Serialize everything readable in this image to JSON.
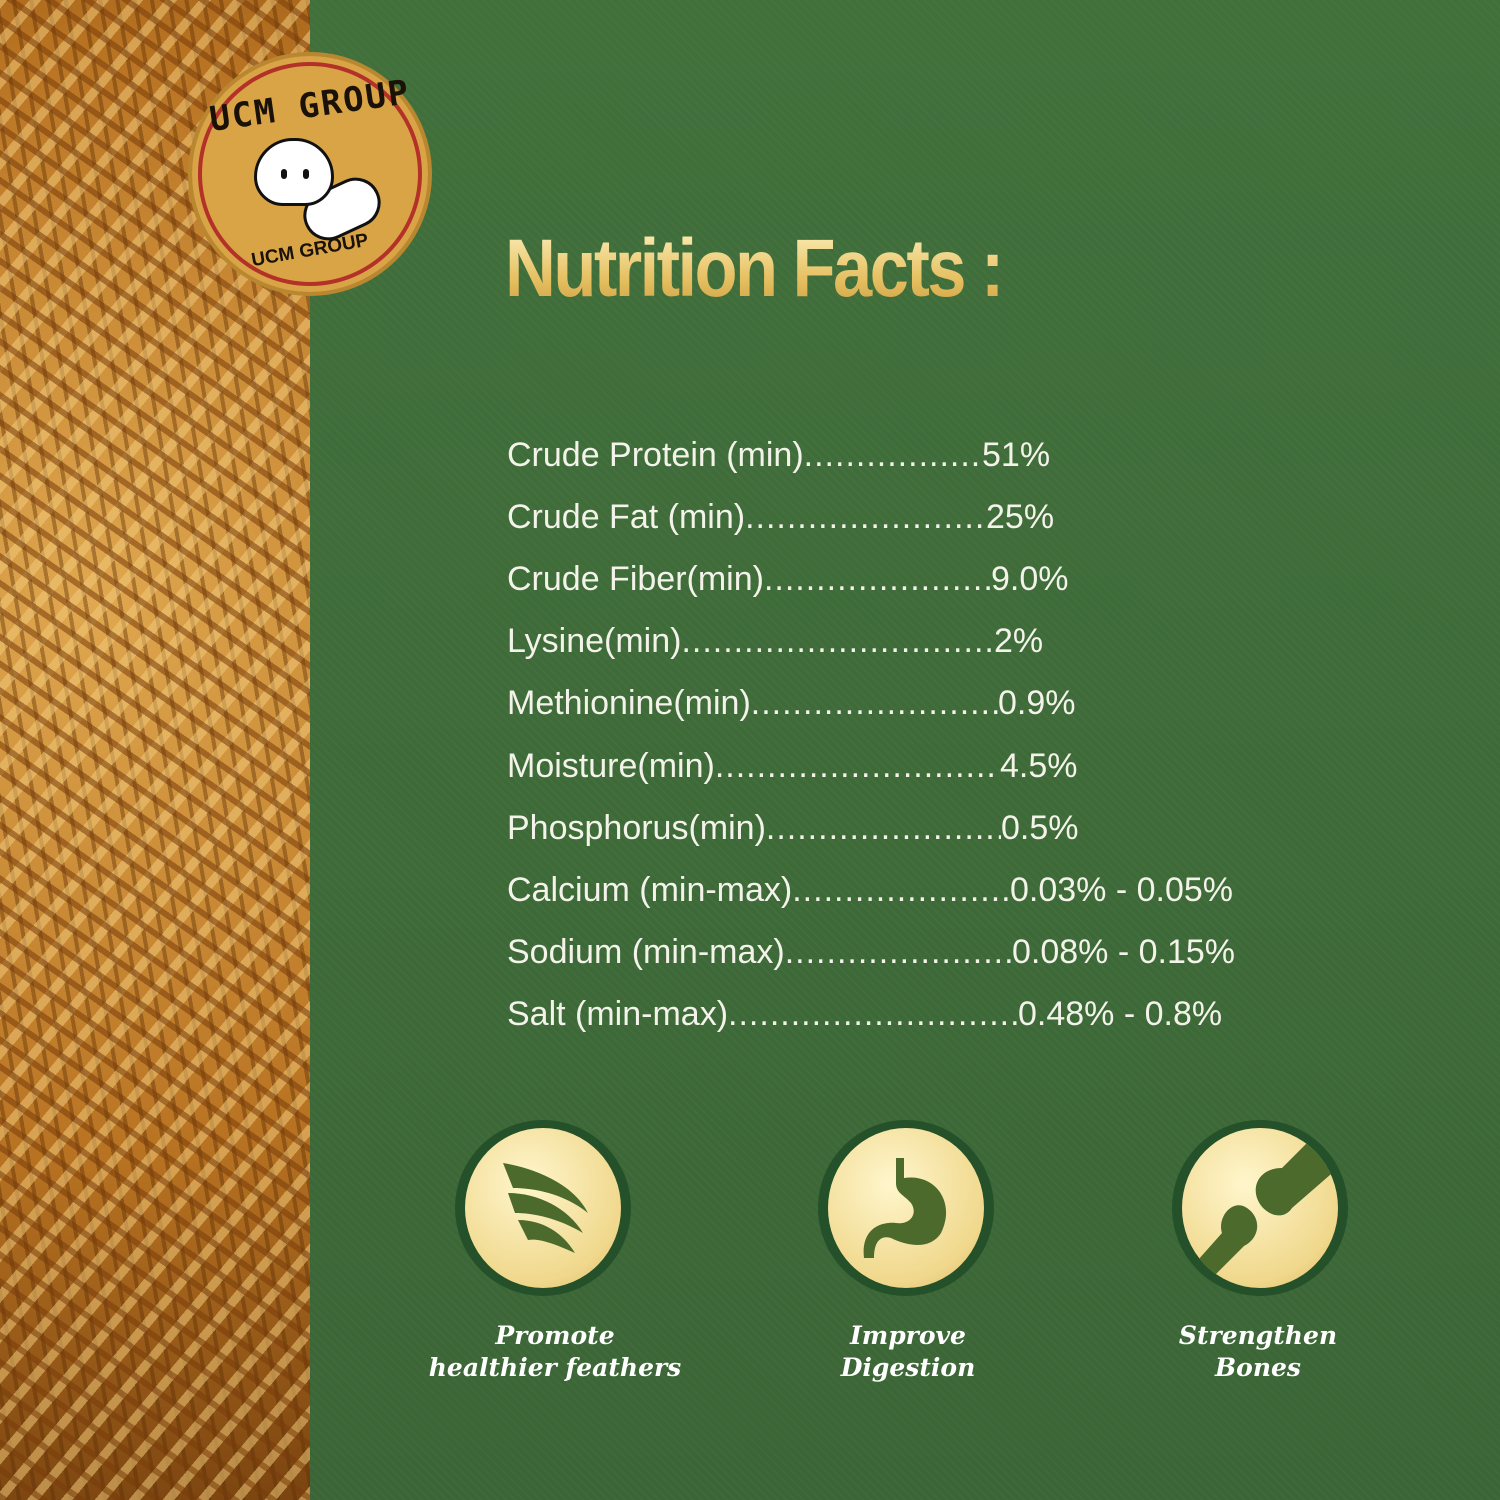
{
  "brand": {
    "logo_text_top": "UCM GROUP",
    "logo_text_bottom": "UCM GROUP"
  },
  "title": "Nutrition Facts :",
  "nutrients": [
    {
      "label": "Crude Protein (min)",
      "value": "51%"
    },
    {
      "label": "Crude Fat (min)",
      "value": "25%"
    },
    {
      "label": "Crude Fiber(min)",
      "value": "9.0%"
    },
    {
      "label": "Lysine(min)",
      "value": "2%"
    },
    {
      "label": "Methionine(min)",
      "value": "0.9%"
    },
    {
      "label": "Moisture(min)",
      "value": "4.5%"
    },
    {
      "label": "Phosphorus(min)",
      "value": "0.5%"
    },
    {
      "label": "Calcium (min-max)",
      "value": "0.03% - 0.05%"
    },
    {
      "label": "Sodium (min-max)",
      "value": "0.08% - 0.15%"
    },
    {
      "label": "Salt (min-max)",
      "value": "0.48% - 0.8%"
    }
  ],
  "benefits": [
    {
      "icon": "feather-icon",
      "line1": "Promote",
      "line2": "healthier feathers"
    },
    {
      "icon": "stomach-icon",
      "line1": "Improve",
      "line2": "Digestion"
    },
    {
      "icon": "bone-joint-icon",
      "line1": "Strengthen",
      "line2": "Bones"
    }
  ],
  "colors": {
    "background": "#3e6a38",
    "title_gold": "#e6c062",
    "badge": "#f0d88c"
  }
}
